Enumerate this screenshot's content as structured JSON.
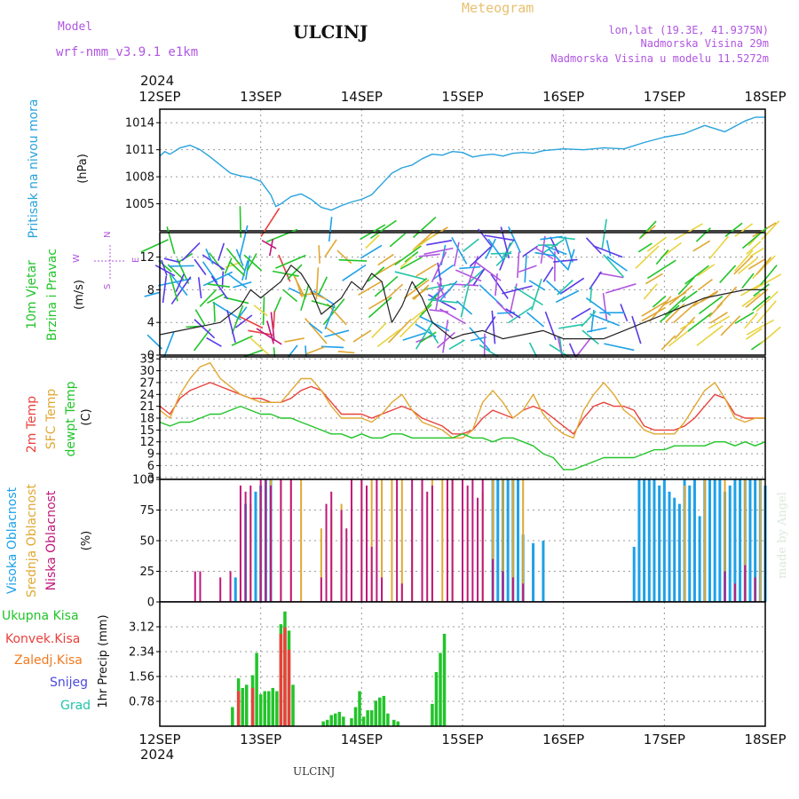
{
  "header": {
    "model_label": "Model",
    "model_name": "wrf-nmm_v3.9.1 e1km",
    "station": "ULCINJ",
    "product": "Meteogram",
    "coords": "lon,lat (19.3E, 41.9375N)",
    "altitude": "Nadmorska Visina 29m",
    "model_altitude": "Nadmorska Visina u modelu 11.5272m",
    "year_top": "2024",
    "year_bottom": "2024",
    "footer_station": "ULCINJ",
    "credit": "made by Angel"
  },
  "colors": {
    "pressure": "#29a3dd",
    "temp2m": "#e8413c",
    "sfc_temp": "#e0a833",
    "dewpt": "#22c42a",
    "high_cloud": "#1da1e8",
    "mid_cloud": "#e0a833",
    "low_cloud": "#c0187a",
    "total_precip": "#22c42a",
    "convective": "#e8413c",
    "frozen": "#f07a20",
    "snow": "#4a4adf",
    "hail": "#22c4a8",
    "wind_lavender": "#b056e0",
    "header_purple": "#b056e0",
    "header_gold": "#e8c070"
  },
  "chart_data": [
    {
      "type": "line",
      "panel": "pressure",
      "ylabel": "Pritisak na nivou mora",
      "unit": "(hPa)",
      "xticks": [
        "12SEP",
        "13SEP",
        "14SEP",
        "15SEP",
        "16SEP",
        "17SEP",
        "18SEP"
      ],
      "ylim": [
        1002,
        1015.5
      ],
      "yticks": [
        1005,
        1008,
        1011,
        1014
      ],
      "grid": true,
      "series": [
        {
          "name": "Pritisak na nivou mora",
          "x": [
            0,
            0.05,
            0.1,
            0.2,
            0.3,
            0.4,
            0.5,
            0.6,
            0.7,
            0.8,
            0.9,
            1.0,
            1.1,
            1.15,
            1.2,
            1.3,
            1.4,
            1.5,
            1.6,
            1.7,
            1.8,
            1.9,
            2.0,
            2.1,
            2.2,
            2.3,
            2.4,
            2.5,
            2.6,
            2.7,
            2.8,
            2.9,
            3.0,
            3.1,
            3.2,
            3.3,
            3.4,
            3.5,
            3.6,
            3.7,
            3.8,
            3.9,
            4.0,
            4.2,
            4.4,
            4.6,
            4.8,
            5.0,
            5.2,
            5.4,
            5.6,
            5.8,
            5.9,
            6.0
          ],
          "y": [
            1010.3,
            1010.8,
            1010.5,
            1011.2,
            1011.5,
            1011.0,
            1010.2,
            1009.3,
            1008.4,
            1008.1,
            1007.9,
            1007.5,
            1006.0,
            1004.7,
            1005.0,
            1005.8,
            1006.1,
            1005.5,
            1004.6,
            1004.3,
            1004.8,
            1005.2,
            1005.5,
            1006.0,
            1007.2,
            1008.4,
            1009.0,
            1009.3,
            1010.0,
            1010.5,
            1010.4,
            1010.8,
            1010.7,
            1010.2,
            1010.4,
            1010.5,
            1010.3,
            1010.6,
            1010.7,
            1010.6,
            1010.9,
            1011.0,
            1011.1,
            1011.0,
            1011.2,
            1011.1,
            1011.8,
            1012.4,
            1012.8,
            1013.7,
            1013.0,
            1014.2,
            1014.6,
            1014.6
          ]
        }
      ]
    },
    {
      "type": "line",
      "panel": "wind",
      "ylabel": "10m Vjetar",
      "ylabel2": "Brzina i Pravac",
      "unit": "(m/s)",
      "compass_letters": [
        "N",
        "W",
        "E",
        "S"
      ],
      "xticks": [
        "12SEP",
        "13SEP",
        "14SEP",
        "15SEP",
        "16SEP",
        "17SEP",
        "18SEP"
      ],
      "ylim": [
        0,
        15
      ],
      "yticks": [
        0,
        4,
        8,
        12
      ],
      "grid": true,
      "series": [
        {
          "name": "10m Vjetar",
          "x": [
            0,
            0.2,
            0.4,
            0.6,
            0.8,
            0.9,
            1.0,
            1.1,
            1.2,
            1.3,
            1.4,
            1.5,
            1.6,
            1.7,
            1.8,
            1.9,
            2.0,
            2.1,
            2.2,
            2.3,
            2.4,
            2.5,
            2.6,
            2.7,
            2.8,
            2.9,
            3.0,
            3.2,
            3.4,
            3.6,
            3.8,
            4.0,
            4.2,
            4.4,
            4.6,
            4.8,
            5.0,
            5.2,
            5.4,
            5.6,
            5.8,
            6.0
          ],
          "y": [
            2.5,
            3.0,
            3.5,
            4.0,
            6.0,
            8.0,
            7.0,
            8.0,
            9.0,
            11.0,
            10.0,
            8.0,
            5.0,
            6.0,
            7.0,
            9.0,
            8.0,
            10.0,
            9.0,
            4.0,
            6.0,
            9.0,
            7.0,
            4.0,
            3.0,
            2.0,
            2.5,
            3.0,
            2.0,
            2.5,
            3.0,
            2.0,
            2.0,
            2.0,
            3.0,
            4.0,
            5.0,
            6.0,
            7.0,
            7.5,
            8.0,
            8.0
          ]
        }
      ]
    },
    {
      "type": "line",
      "panel": "temperature",
      "ylabel": "2m Temp",
      "ylabel2": "SFC Temp",
      "ylabel3": "dewpt Temp",
      "unit": "(C)",
      "xticks": [
        "12SEP",
        "13SEP",
        "14SEP",
        "15SEP",
        "16SEP",
        "17SEP",
        "18SEP"
      ],
      "ylim": [
        2.5,
        33.5
      ],
      "yticks": [
        3,
        6,
        9,
        12,
        15,
        18,
        21,
        24,
        27,
        30,
        33
      ],
      "grid": true,
      "series": [
        {
          "name": "2m Temp",
          "x": [
            0,
            0.1,
            0.2,
            0.3,
            0.4,
            0.5,
            0.6,
            0.7,
            0.8,
            0.9,
            1.0,
            1.1,
            1.2,
            1.3,
            1.4,
            1.5,
            1.6,
            1.7,
            1.8,
            1.9,
            2.0,
            2.1,
            2.2,
            2.3,
            2.4,
            2.5,
            2.6,
            2.7,
            2.8,
            2.9,
            3.0,
            3.1,
            3.2,
            3.3,
            3.4,
            3.5,
            3.6,
            3.7,
            3.8,
            3.9,
            4.0,
            4.1,
            4.2,
            4.3,
            4.4,
            4.5,
            4.6,
            4.7,
            4.8,
            4.9,
            5.0,
            5.1,
            5.2,
            5.3,
            5.4,
            5.5,
            5.6,
            5.7,
            5.8,
            5.9,
            6.0
          ],
          "y": [
            21,
            19,
            23,
            25,
            26,
            27,
            26,
            25,
            24,
            23,
            23,
            22,
            22,
            23,
            25,
            26,
            25,
            22,
            19,
            19,
            19,
            18,
            19,
            20,
            21,
            20,
            18,
            17,
            16,
            14,
            14,
            15,
            18,
            20,
            19,
            18,
            20,
            21,
            20,
            18,
            16,
            14,
            18,
            21,
            22,
            21,
            21,
            20,
            16,
            15,
            15,
            15,
            16,
            18,
            21,
            24,
            23,
            19,
            18,
            18,
            18
          ]
        },
        {
          "name": "SFC Temp",
          "x": [
            0,
            0.1,
            0.2,
            0.3,
            0.4,
            0.5,
            0.6,
            0.7,
            0.8,
            0.9,
            1.0,
            1.1,
            1.2,
            1.3,
            1.4,
            1.5,
            1.6,
            1.7,
            1.8,
            1.9,
            2.0,
            2.1,
            2.2,
            2.3,
            2.4,
            2.5,
            2.6,
            2.7,
            2.8,
            2.9,
            3.0,
            3.1,
            3.2,
            3.3,
            3.4,
            3.5,
            3.6,
            3.7,
            3.8,
            3.9,
            4.0,
            4.1,
            4.2,
            4.3,
            4.4,
            4.5,
            4.6,
            4.7,
            4.8,
            4.9,
            5.0,
            5.1,
            5.2,
            5.3,
            5.4,
            5.5,
            5.6,
            5.7,
            5.8,
            5.9,
            6.0
          ],
          "y": [
            20,
            18,
            24,
            28,
            31,
            32,
            28,
            26,
            24,
            23,
            22,
            22,
            22,
            25,
            28,
            28,
            25,
            21,
            18,
            18,
            18,
            17,
            19,
            22,
            24,
            20,
            17,
            16,
            15,
            13,
            13,
            15,
            22,
            25,
            22,
            18,
            20,
            24,
            19,
            16,
            14,
            13,
            20,
            24,
            27,
            24,
            20,
            18,
            15,
            14,
            14,
            14,
            17,
            21,
            25,
            27,
            23,
            18,
            17,
            18,
            18
          ]
        },
        {
          "name": "dewpt Temp",
          "x": [
            0,
            0.1,
            0.2,
            0.3,
            0.4,
            0.5,
            0.6,
            0.7,
            0.8,
            0.9,
            1.0,
            1.1,
            1.2,
            1.3,
            1.4,
            1.5,
            1.6,
            1.7,
            1.8,
            1.9,
            2.0,
            2.1,
            2.2,
            2.3,
            2.4,
            2.5,
            2.6,
            2.7,
            2.8,
            2.9,
            3.0,
            3.1,
            3.2,
            3.3,
            3.4,
            3.5,
            3.6,
            3.7,
            3.8,
            3.9,
            4.0,
            4.1,
            4.2,
            4.3,
            4.4,
            4.5,
            4.6,
            4.7,
            4.8,
            4.9,
            5.0,
            5.1,
            5.2,
            5.3,
            5.4,
            5.5,
            5.6,
            5.7,
            5.8,
            5.9,
            6.0
          ],
          "y": [
            17,
            16,
            17,
            17,
            18,
            19,
            19,
            20,
            21,
            20,
            19,
            19,
            18,
            18,
            17,
            16,
            15,
            14,
            14,
            13,
            14,
            13,
            13,
            14,
            14,
            13,
            13,
            13,
            13,
            13,
            14,
            13,
            13,
            12,
            13,
            13,
            12,
            11,
            9,
            8,
            5,
            5,
            6,
            7,
            8,
            8,
            8,
            8,
            9,
            10,
            10,
            11,
            11,
            11,
            11,
            12,
            12,
            11,
            12,
            11,
            12
          ]
        }
      ]
    },
    {
      "type": "bar",
      "panel": "clouds",
      "ylabel": "Visoka Oblacnost",
      "ylabel2": "Srednja Oblacnost",
      "ylabel3": "Niska Oblacnost",
      "unit": "(%)",
      "xticks": [
        "12SEP",
        "13SEP",
        "14SEP",
        "15SEP",
        "16SEP",
        "17SEP",
        "18SEP"
      ],
      "ylim": [
        0,
        100
      ],
      "yticks": [
        0,
        25,
        50,
        75,
        100
      ],
      "grid": true,
      "series": [
        {
          "name": "Visoka Oblacnost",
          "x": [
            0.75,
            0.85,
            0.95,
            1.0,
            1.05,
            1.1,
            3.3,
            3.35,
            3.4,
            3.45,
            3.5,
            3.55,
            3.6,
            3.7,
            3.8,
            4.7,
            4.75,
            4.8,
            4.85,
            4.9,
            4.95,
            5.0,
            5.05,
            5.1,
            5.15,
            5.2,
            5.25,
            5.3,
            5.35,
            5.4,
            5.45,
            5.5,
            5.55,
            5.6,
            5.65,
            5.7,
            5.75,
            5.8,
            5.85,
            5.9,
            5.95,
            6.0
          ],
          "y": [
            20,
            80,
            90,
            95,
            100,
            100,
            100,
            100,
            100,
            100,
            100,
            100,
            55,
            48,
            50,
            45,
            100,
            100,
            100,
            100,
            95,
            100,
            90,
            85,
            80,
            100,
            95,
            100,
            70,
            100,
            100,
            100,
            100,
            90,
            95,
            100,
            100,
            100,
            100,
            100,
            100,
            95
          ]
        },
        {
          "name": "Srednja Oblacnost",
          "x": [
            0.8,
            0.9,
            1.0,
            1.1,
            1.2,
            1.3,
            1.4,
            1.6,
            1.7,
            1.8,
            1.9,
            2.0,
            2.1,
            2.2,
            2.3,
            2.4,
            2.5,
            2.6,
            2.7,
            2.8,
            2.9,
            3.0,
            3.2,
            3.3,
            3.4,
            3.5,
            3.6,
            5.2,
            5.4,
            5.6,
            5.8,
            5.95
          ],
          "y": [
            75,
            80,
            90,
            100,
            100,
            100,
            100,
            60,
            75,
            80,
            75,
            100,
            100,
            100,
            100,
            100,
            75,
            100,
            100,
            100,
            100,
            100,
            90,
            100,
            100,
            100,
            100,
            95,
            100,
            100,
            100,
            100
          ]
        },
        {
          "name": "Niska Oblacnost",
          "x": [
            0.35,
            0.4,
            0.6,
            0.7,
            0.8,
            0.85,
            0.9,
            1.0,
            1.05,
            1.1,
            1.2,
            1.3,
            1.6,
            1.65,
            1.7,
            1.8,
            1.85,
            1.9,
            2.0,
            2.05,
            2.1,
            2.15,
            2.2,
            2.35,
            2.4,
            2.5,
            2.6,
            2.65,
            2.7,
            2.85,
            2.9,
            3.0,
            3.05,
            3.1,
            3.15,
            3.2,
            3.3,
            3.4,
            3.5,
            3.6,
            5.6,
            5.7,
            5.8,
            5.9
          ],
          "y": [
            25,
            25,
            20,
            25,
            95,
            90,
            95,
            100,
            100,
            95,
            100,
            100,
            20,
            80,
            90,
            75,
            60,
            100,
            100,
            95,
            45,
            100,
            20,
            100,
            15,
            100,
            100,
            90,
            95,
            100,
            100,
            100,
            95,
            100,
            85,
            100,
            35,
            25,
            20,
            15,
            25,
            15,
            30,
            20
          ]
        }
      ]
    },
    {
      "type": "bar",
      "panel": "precipitation",
      "ylabel": "1hr Precip",
      "unit": "(mm)",
      "legend": [
        "Ukupna Kisa",
        "Konvek.Kisa",
        "Zaledj.Kisa",
        "Snijeg",
        "Grad"
      ],
      "xticks": [
        "12SEP",
        "13SEP",
        "14SEP",
        "15SEP",
        "16SEP",
        "17SEP",
        "18SEP"
      ],
      "ylim": [
        0,
        3.9
      ],
      "yticks": [
        0.78,
        1.56,
        2.34,
        3.12
      ],
      "grid": true,
      "series": [
        {
          "name": "Ukupna Kisa",
          "x": [
            0.72,
            0.78,
            0.82,
            0.86,
            0.92,
            0.96,
            1.0,
            1.04,
            1.08,
            1.12,
            1.16,
            1.2,
            1.24,
            1.28,
            1.32,
            1.62,
            1.66,
            1.7,
            1.74,
            1.78,
            1.82,
            1.9,
            1.94,
            1.98,
            2.02,
            2.06,
            2.1,
            2.14,
            2.18,
            2.22,
            2.26,
            2.32,
            2.36,
            2.7,
            2.74,
            2.78,
            2.82
          ],
          "y": [
            0.6,
            1.5,
            1.2,
            1.3,
            1.6,
            2.3,
            1.0,
            1.1,
            1.1,
            1.2,
            1.1,
            3.2,
            3.6,
            3.0,
            1.3,
            0.15,
            0.2,
            0.35,
            0.4,
            0.45,
            0.3,
            0.25,
            0.6,
            1.1,
            0.3,
            0.5,
            0.5,
            0.8,
            0.9,
            0.95,
            0.4,
            0.2,
            0.15,
            0.7,
            1.7,
            2.3,
            2.9
          ]
        },
        {
          "name": "Konvek.Kisa",
          "x": [
            0.78,
            0.92,
            1.2,
            1.24,
            1.28
          ],
          "y": [
            1.1,
            1.2,
            2.9,
            3.1,
            2.4
          ]
        }
      ]
    }
  ]
}
